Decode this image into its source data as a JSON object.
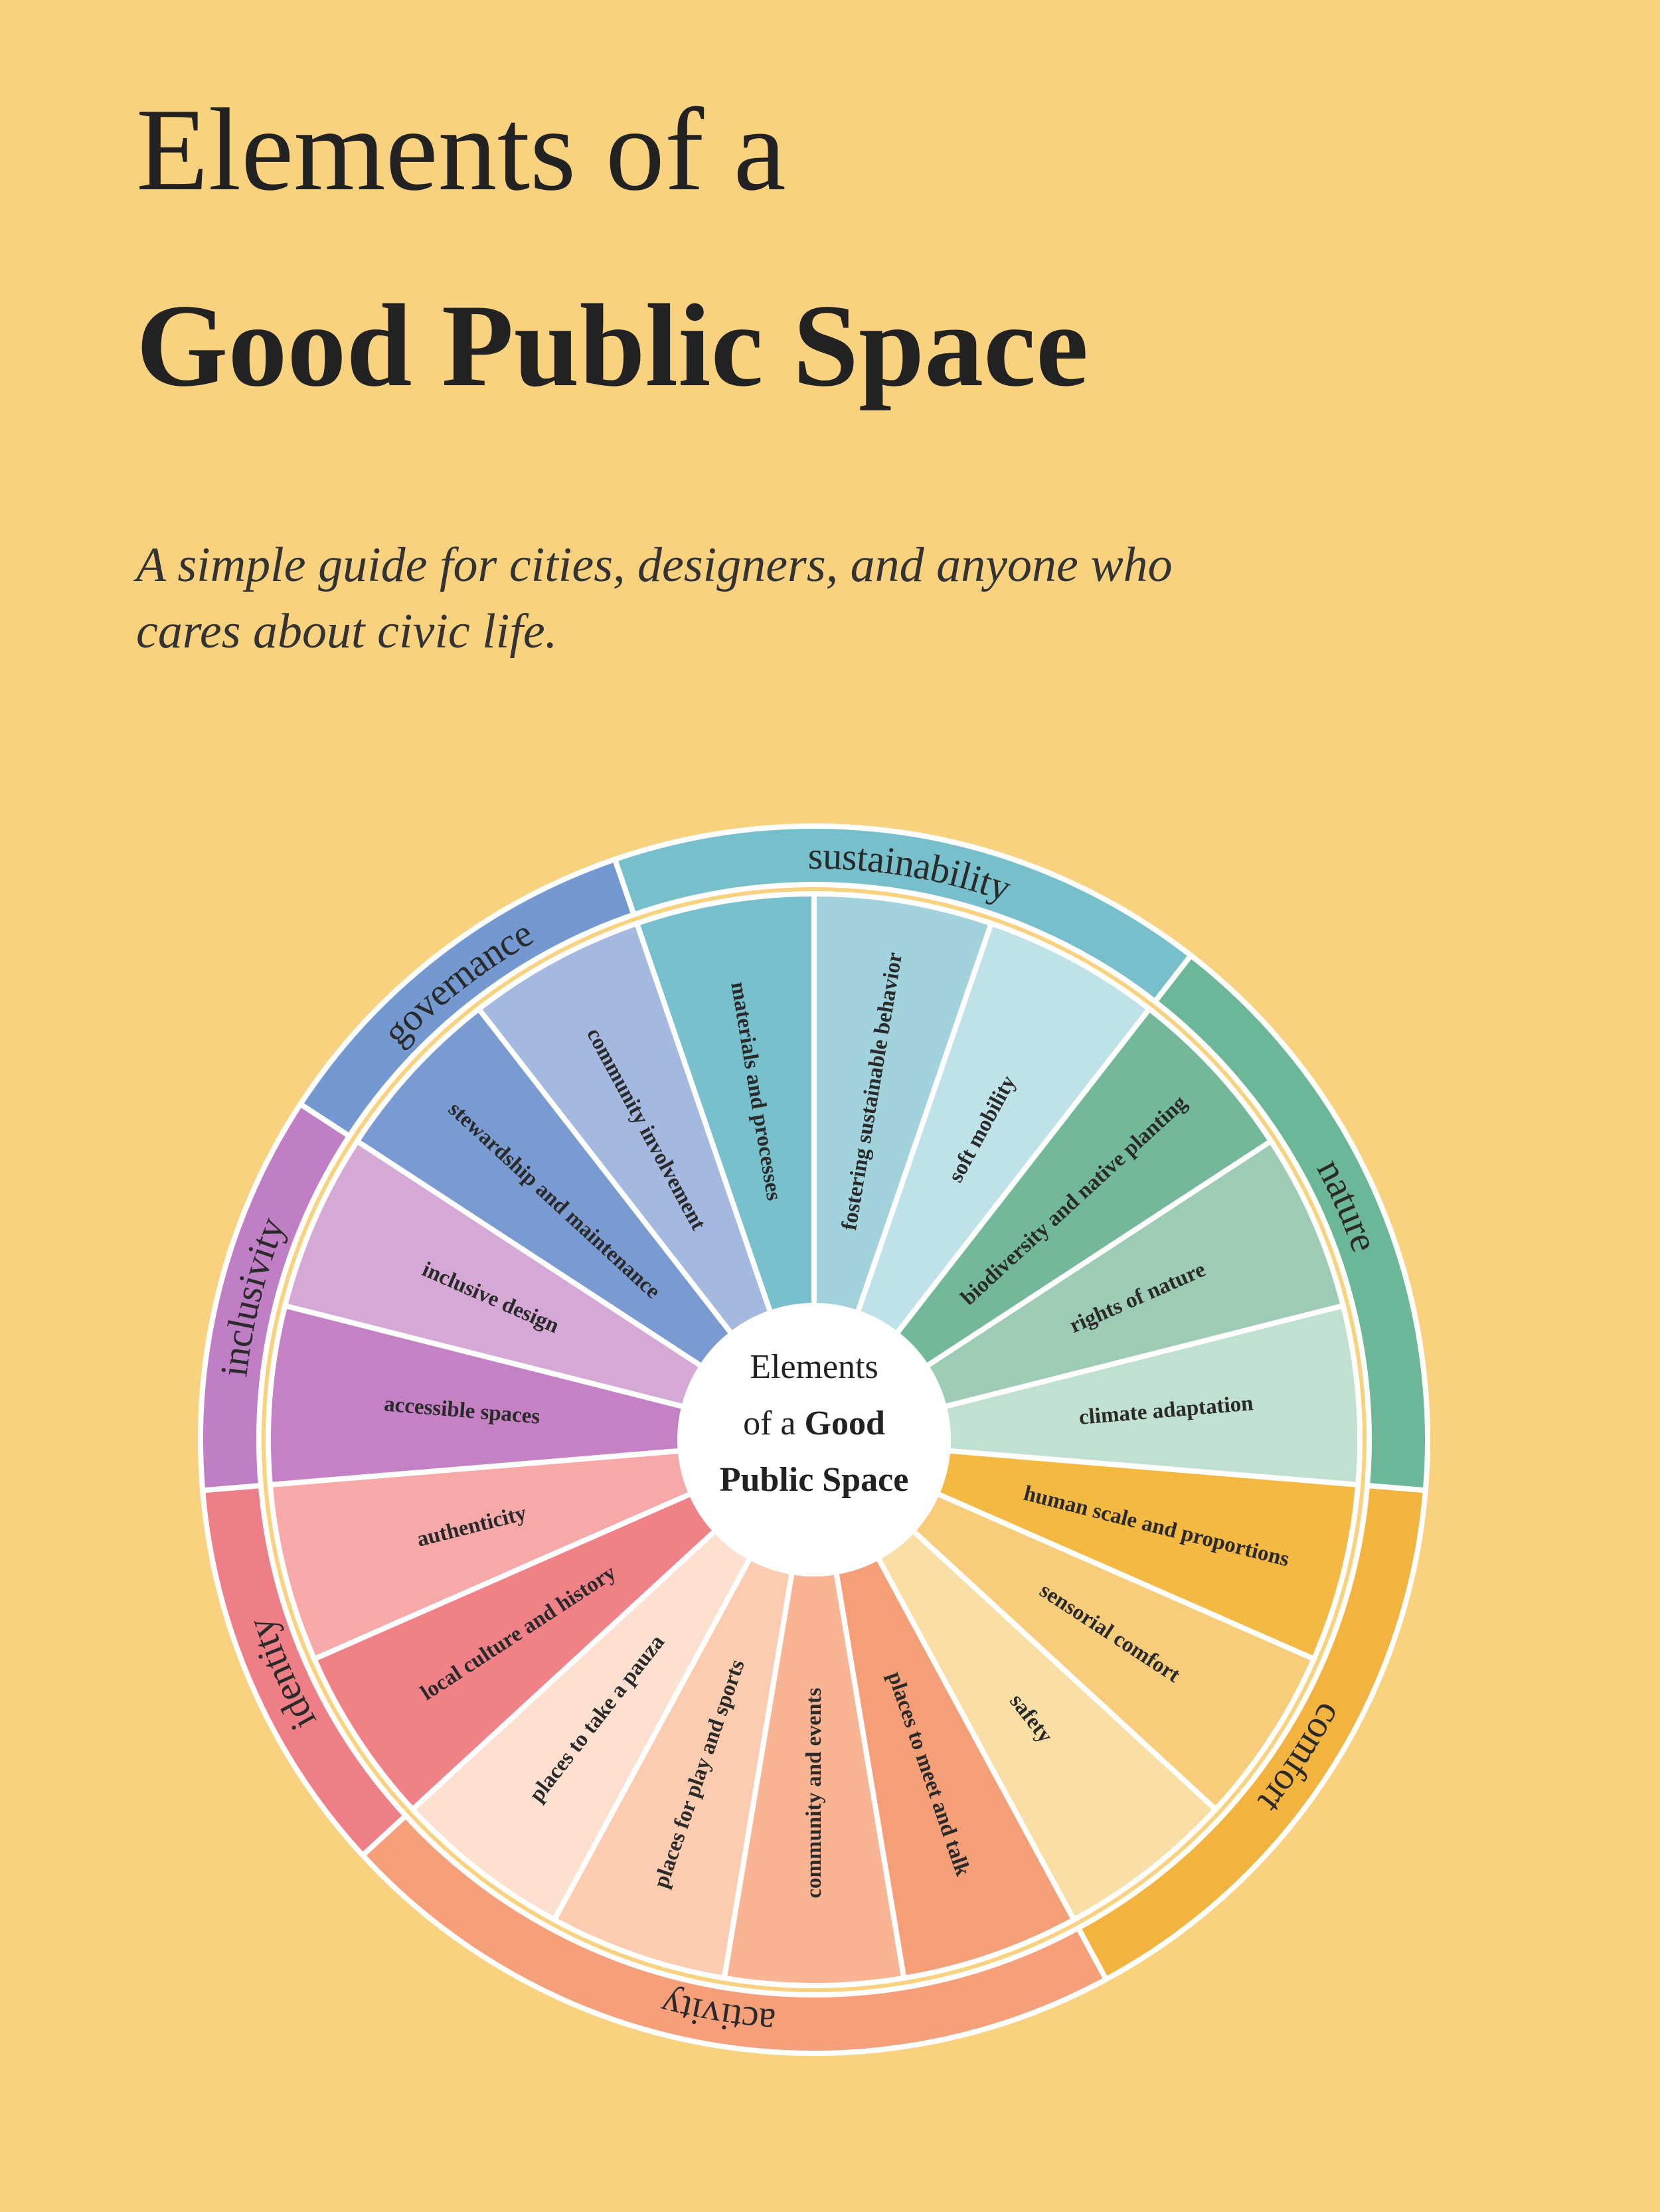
{
  "header": {
    "title_line1": "Elements of a",
    "title_line2": "Good Public Space",
    "subtitle_line1": "A simple guide for cities, designers, and anyone who",
    "subtitle_line2": "cares about civic life."
  },
  "center": {
    "line1": "Elements",
    "line2": "of a",
    "line3": "Good",
    "line4": "Public Space"
  },
  "categories": [
    {
      "name": "sustainability",
      "color": "#76bfcb",
      "elements": [
        {
          "label": "materials and processes",
          "color": "#78c0cc"
        },
        {
          "label": "fostering sustainable behavior",
          "color": "#a2d3dc"
        },
        {
          "label": "soft mobility",
          "color": "#bfe2e8"
        }
      ]
    },
    {
      "name": "nature",
      "color": "#6cb69a",
      "elements": [
        {
          "label": "biodiversity and native planting",
          "color": "#74b89c"
        },
        {
          "label": "rights of nature",
          "color": "#9dcbb5"
        },
        {
          "label": "climate adaptation",
          "color": "#c0e0d2"
        }
      ]
    },
    {
      "name": "comfort",
      "color": "#f2b43e",
      "elements": [
        {
          "label": "human scale and proportions",
          "color": "#f3b942"
        },
        {
          "label": "sensorial comfort",
          "color": "#f7cd7c"
        },
        {
          "label": "safety",
          "color": "#f9dfa6"
        }
      ]
    },
    {
      "name": "activity",
      "color": "#f5a07a",
      "elements": [
        {
          "label": "places to meet and talk",
          "color": "#f59f78"
        },
        {
          "label": "community and events",
          "color": "#f9b593"
        },
        {
          "label": "places for play and sports",
          "color": "#fcccb0"
        },
        {
          "label": "places to take a pauza",
          "color": "#fde0cf"
        }
      ]
    },
    {
      "name": "identity",
      "color": "#ef7f86",
      "elements": [
        {
          "label": "local culture and history",
          "color": "#f08187"
        },
        {
          "label": "authenticity",
          "color": "#f6a9a8"
        }
      ]
    },
    {
      "name": "inclusivity",
      "color": "#c07fc4",
      "elements": [
        {
          "label": "accessible spaces",
          "color": "#c482c5"
        },
        {
          "label": "inclusive design",
          "color": "#d5a8d6"
        }
      ]
    },
    {
      "name": "governance",
      "color": "#7399d0",
      "elements": [
        {
          "label": "stewardship and maintenance",
          "color": "#7a9bd1"
        },
        {
          "label": "community involvement",
          "color": "#a4b8e0"
        }
      ]
    }
  ]
}
